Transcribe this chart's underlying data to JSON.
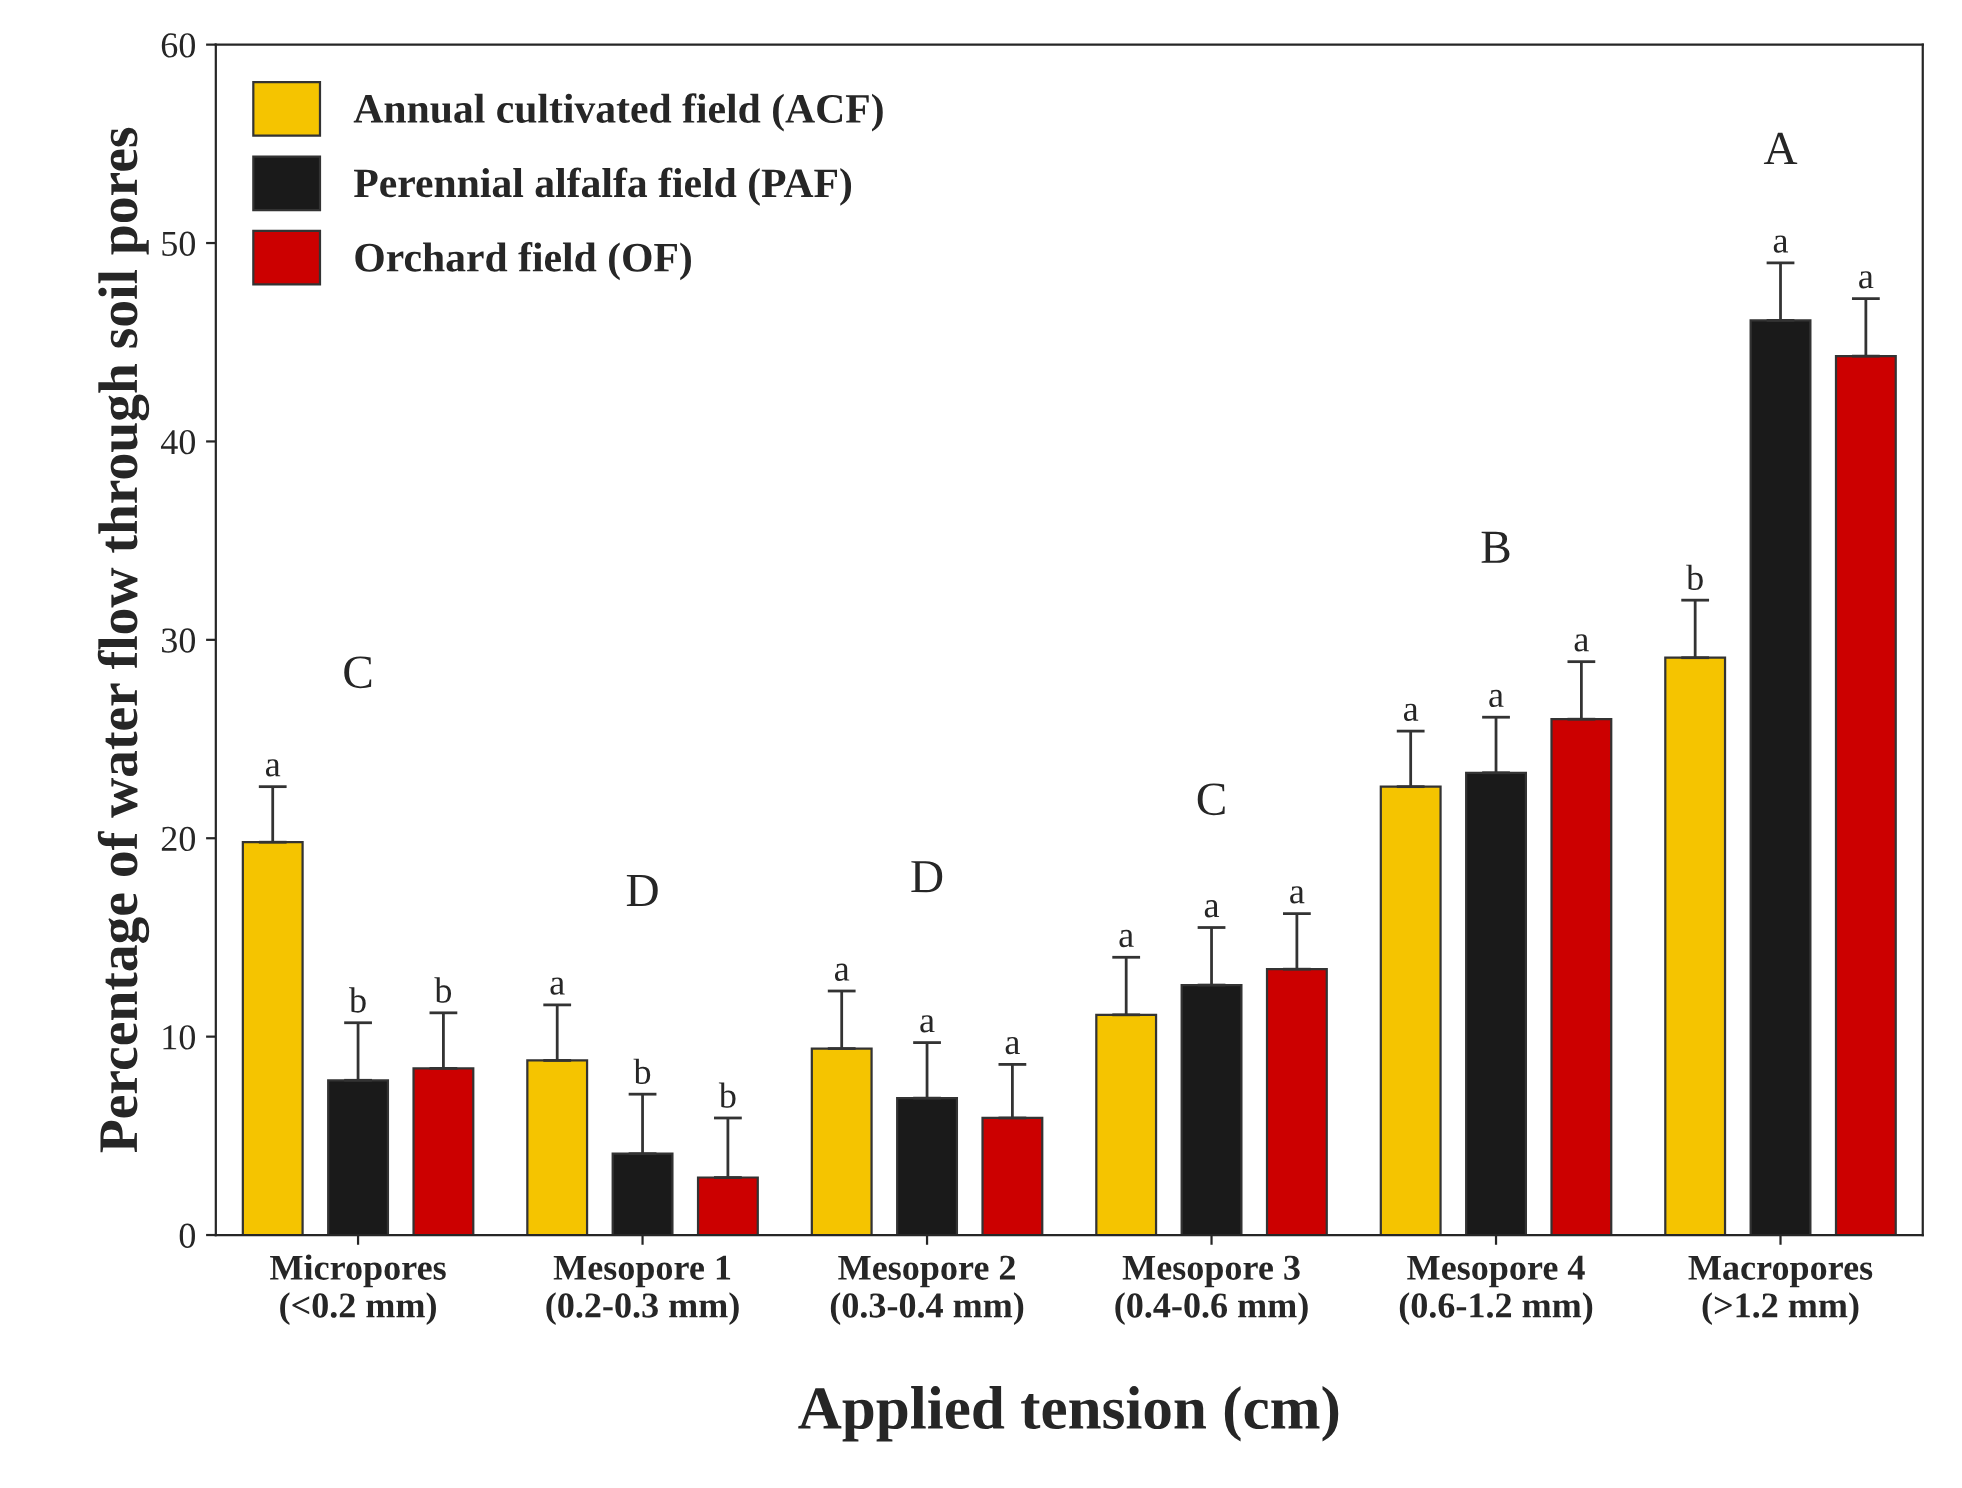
{
  "chart_data": {
    "type": "bar",
    "xlabel": "Applied tension (cm)",
    "ylabel": "Percentage of water flow through soil pores",
    "categories": [
      "Micropores\n(<0.2 mm)",
      "Mesopore 1\n(0.2-0.3 mm)",
      "Mesopore 2\n(0.3-0.4 mm)",
      "Mesopore 3\n(0.4-0.6 mm)",
      "Mesopore 4\n(0.6-1.2 mm)",
      "Macropores\n(>1.2 mm)"
    ],
    "series": [
      {
        "name": "Annual cultivated field (ACF)",
        "color": "#f5c400",
        "values": [
          19.8,
          8.8,
          9.4,
          11.1,
          22.6,
          29.1
        ],
        "errors": [
          [
            19.8,
            22.6
          ],
          [
            8.8,
            11.6
          ],
          [
            9.4,
            12.3
          ],
          [
            11.1,
            14.0
          ],
          [
            22.6,
            25.4
          ],
          [
            29.1,
            32.0
          ]
        ],
        "value_labels": [
          "a",
          "a",
          "a",
          "a",
          "a",
          "b"
        ]
      },
      {
        "name": "Perennial alfalfa field (PAF)",
        "color": "#1a1a1a",
        "values": [
          7.8,
          4.1,
          6.9,
          12.6,
          23.3,
          46.1
        ],
        "errors": [
          [
            7.8,
            10.7
          ],
          [
            4.1,
            7.1
          ],
          [
            6.9,
            9.7
          ],
          [
            12.6,
            15.5
          ],
          [
            23.3,
            26.1
          ],
          [
            46.1,
            49.0
          ]
        ],
        "value_labels": [
          "b",
          "b",
          "a",
          "a",
          "a",
          "a"
        ]
      },
      {
        "name": "Orchard field (OF)",
        "color": "#cc0000",
        "values": [
          8.4,
          2.9,
          5.9,
          13.4,
          26.0,
          44.3
        ],
        "errors": [
          [
            8.4,
            11.2
          ],
          [
            2.9,
            5.9
          ],
          [
            5.9,
            8.6
          ],
          [
            13.4,
            16.2
          ],
          [
            26.0,
            28.9
          ],
          [
            44.3,
            47.2
          ]
        ],
        "value_labels": [
          "b",
          "b",
          "a",
          "a",
          "a",
          "a"
        ]
      }
    ],
    "annotations": [
      "C",
      "D",
      "D",
      "C",
      "B",
      "A"
    ],
    "ylim": [
      0,
      60
    ],
    "yticks": [
      0,
      10,
      20,
      30,
      40,
      50,
      60
    ],
    "grid": false,
    "legend": "top left"
  }
}
